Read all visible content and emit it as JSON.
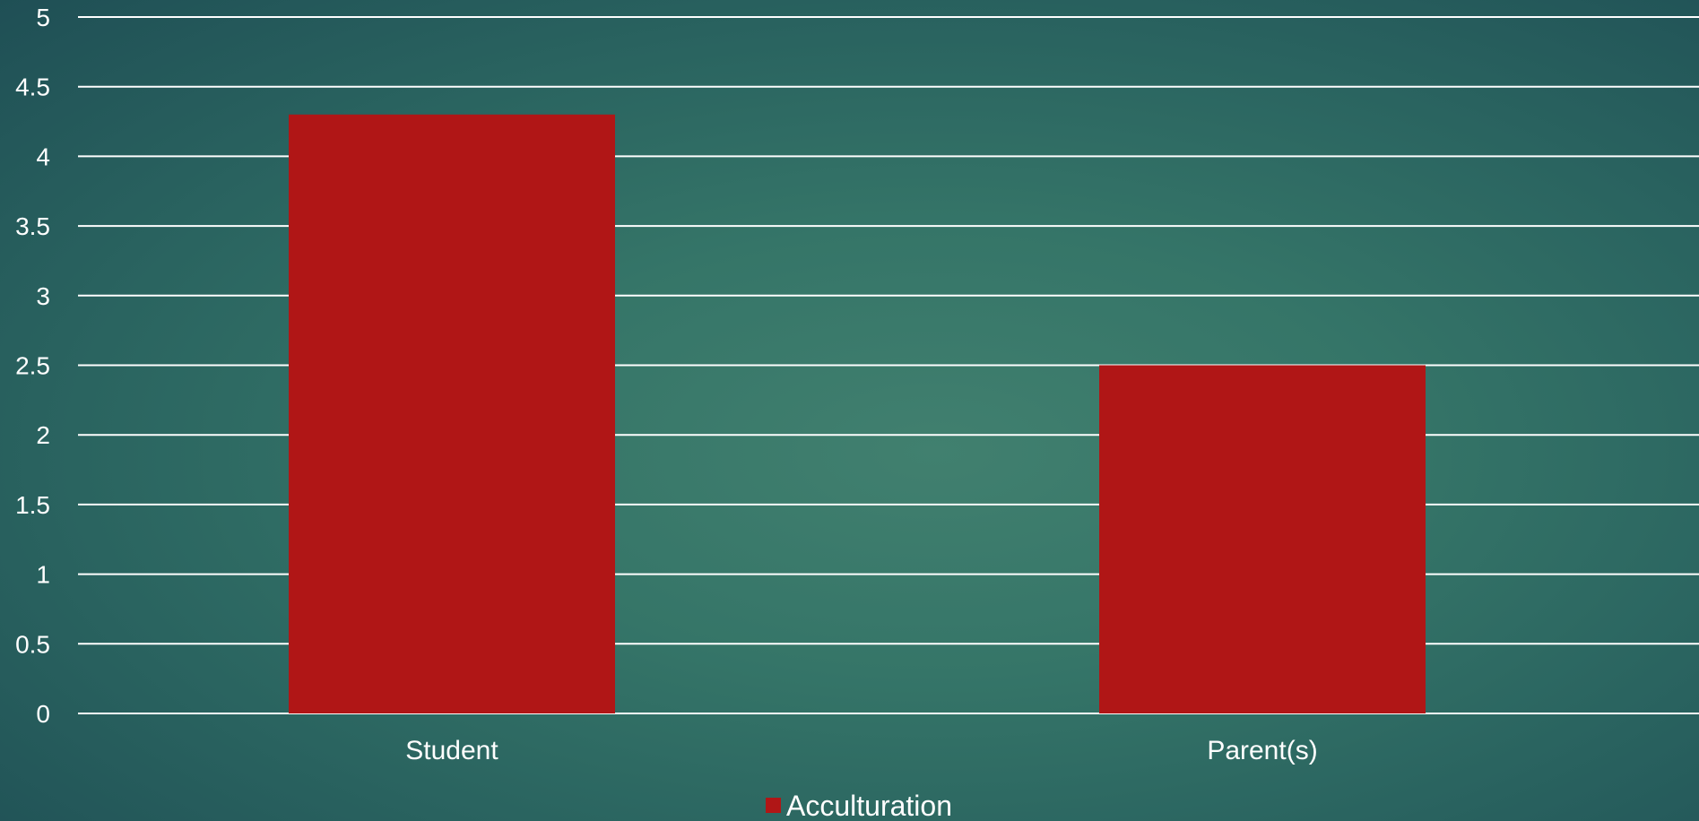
{
  "chart_data": {
    "type": "bar",
    "categories": [
      "Student",
      "Parent(s)"
    ],
    "series": [
      {
        "name": "Acculturation",
        "values": [
          4.3,
          2.5
        ]
      }
    ],
    "title": "",
    "xlabel": "",
    "ylabel": "",
    "ylim": [
      0,
      5
    ],
    "yticks": [
      "0",
      "0.5",
      "1",
      "1.5",
      "2",
      "2.5",
      "3",
      "3.5",
      "4",
      "4.5",
      "5"
    ],
    "grid": true,
    "legend_position": "bottom",
    "colors": {
      "bar": "#b01616",
      "gridline": "#ffffff",
      "text": "#ffffff"
    }
  }
}
